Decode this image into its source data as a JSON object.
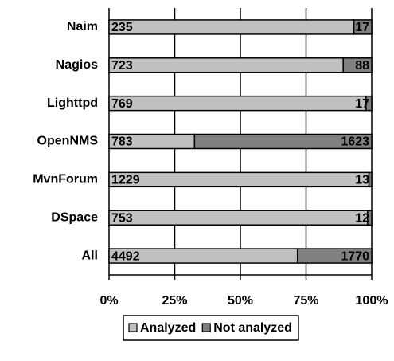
{
  "chart_data": {
    "type": "bar",
    "orientation": "horizontal",
    "stacking": "percent",
    "categories": [
      "Naim",
      "Nagios",
      "Lighttpd",
      "OpenNMS",
      "MvnForum",
      "DSpace",
      "All"
    ],
    "series": [
      {
        "name": "Analyzed",
        "color": "#c0c0c0",
        "values": [
          235,
          723,
          769,
          783,
          1229,
          753,
          4492
        ]
      },
      {
        "name": "Not analyzed",
        "color": "#808080",
        "values": [
          17,
          88,
          17,
          1623,
          13,
          12,
          1770
        ]
      }
    ],
    "xlim": [
      0,
      100
    ],
    "xticks": [
      {
        "value": 0,
        "label": "0%"
      },
      {
        "value": 25,
        "label": "25%"
      },
      {
        "value": 50,
        "label": "50%"
      },
      {
        "value": 75,
        "label": "75%"
      },
      {
        "value": 100,
        "label": "100%"
      }
    ],
    "grid": true,
    "legend": "bottom"
  }
}
